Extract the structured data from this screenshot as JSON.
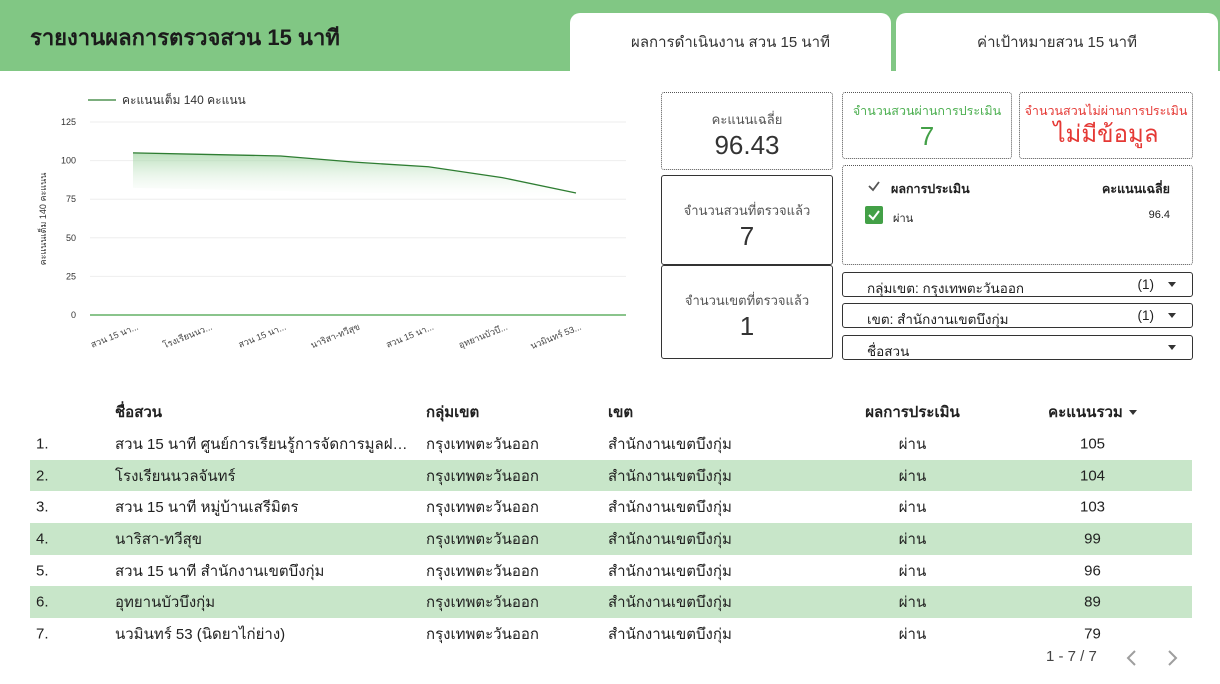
{
  "header": {
    "title": "รายงานผลการตรวจสวน 15 นาที",
    "tabs": [
      "ผลการดำเนินงาน สวน 15 นาที",
      "ค่าเป้าหมายสวน 15 นาที"
    ]
  },
  "kpis": {
    "avg_label": "คะแนนเฉลี่ย",
    "avg_value": "96.43",
    "pass_label": "จำนวนสวนผ่านการประเมิน",
    "pass_value": "7",
    "fail_label": "จำนวนสวนไม่ผ่านการประเมิน",
    "fail_value": "ไม่มีข้อมูล",
    "checked_label": "จำนวนสวนที่ตรวจแล้ว",
    "checked_value": "7",
    "district_label": "จำนวนเขตที่ตรวจแล้ว",
    "district_value": "1"
  },
  "result_table": {
    "header_label": "ผลการประเมิน",
    "header_value": "คะแนนเฉลี่ย",
    "row_label": "ผ่าน",
    "row_value": "96.4"
  },
  "filters": [
    {
      "label": "กลุ่มเขต: กรุงเทพตะวันออก",
      "count": "(1)"
    },
    {
      "label": "เขต: สำนักงานเขตบึงกุ่ม",
      "count": "(1)"
    },
    {
      "label": "ชื่อสวน",
      "count": ""
    }
  ],
  "table": {
    "columns": [
      "ชื่อสวน",
      "กลุ่มเขต",
      "เขต",
      "ผลการประเมิน",
      "คะแนนรวม"
    ],
    "rows": [
      {
        "idx": "1.",
        "name": "สวน 15 นาที ศูนย์การเรียนรู้การจัดการมูลฝอย...",
        "group": "กรุงเทพตะวันออก",
        "district": "สำนักงานเขตบึงกุ่ม",
        "result": "ผ่าน",
        "score": "105"
      },
      {
        "idx": "2.",
        "name": "โรงเรียนนวลจันทร์",
        "group": "กรุงเทพตะวันออก",
        "district": "สำนักงานเขตบึงกุ่ม",
        "result": "ผ่าน",
        "score": "104"
      },
      {
        "idx": "3.",
        "name": "สวน 15 นาที หมู่บ้านเสรีมิตร",
        "group": "กรุงเทพตะวันออก",
        "district": "สำนักงานเขตบึงกุ่ม",
        "result": "ผ่าน",
        "score": "103"
      },
      {
        "idx": "4.",
        "name": "นาริสา-ทวีสุข",
        "group": "กรุงเทพตะวันออก",
        "district": "สำนักงานเขตบึงกุ่ม",
        "result": "ผ่าน",
        "score": "99"
      },
      {
        "idx": "5.",
        "name": "สวน 15 นาที สำนักงานเขตบึงกุ่ม",
        "group": "กรุงเทพตะวันออก",
        "district": "สำนักงานเขตบึงกุ่ม",
        "result": "ผ่าน",
        "score": "96"
      },
      {
        "idx": "6.",
        "name": "อุทยานบัวบึงกุ่ม",
        "group": "กรุงเทพตะวันออก",
        "district": "สำนักงานเขตบึงกุ่ม",
        "result": "ผ่าน",
        "score": "89"
      },
      {
        "idx": "7.",
        "name": "นวมินทร์ 53 (นิดยาไก่ย่าง)",
        "group": "กรุงเทพตะวันออก",
        "district": "สำนักงานเขตบึงกุ่ม",
        "result": "ผ่าน",
        "score": "79"
      }
    ]
  },
  "pager": {
    "text": "1 - 7 / 7"
  },
  "chart_data": {
    "type": "area",
    "categories": [
      "สวน 15 นา...",
      "โรงเรียนนว...",
      "สวน 15 นา...",
      "นาริสา-ทวีสุข",
      "สวน 15 นา...",
      "อุทยานบัวบึ...",
      "นวมินทร์ 53..."
    ],
    "series": [
      {
        "name": "คะแนนเต็ม 140 คะแนน",
        "values": [
          105,
          104,
          103,
          99,
          96,
          89,
          79
        ]
      }
    ],
    "ylabel": "คะแนนเต็ม 140 คะแนน",
    "xlabel": "",
    "ylim": [
      0,
      125
    ],
    "yticks": [
      0,
      25,
      50,
      75,
      100,
      125
    ],
    "legend": "top-left",
    "color": "#2e7d32",
    "baseline_color": "#43a047",
    "grid": true
  }
}
